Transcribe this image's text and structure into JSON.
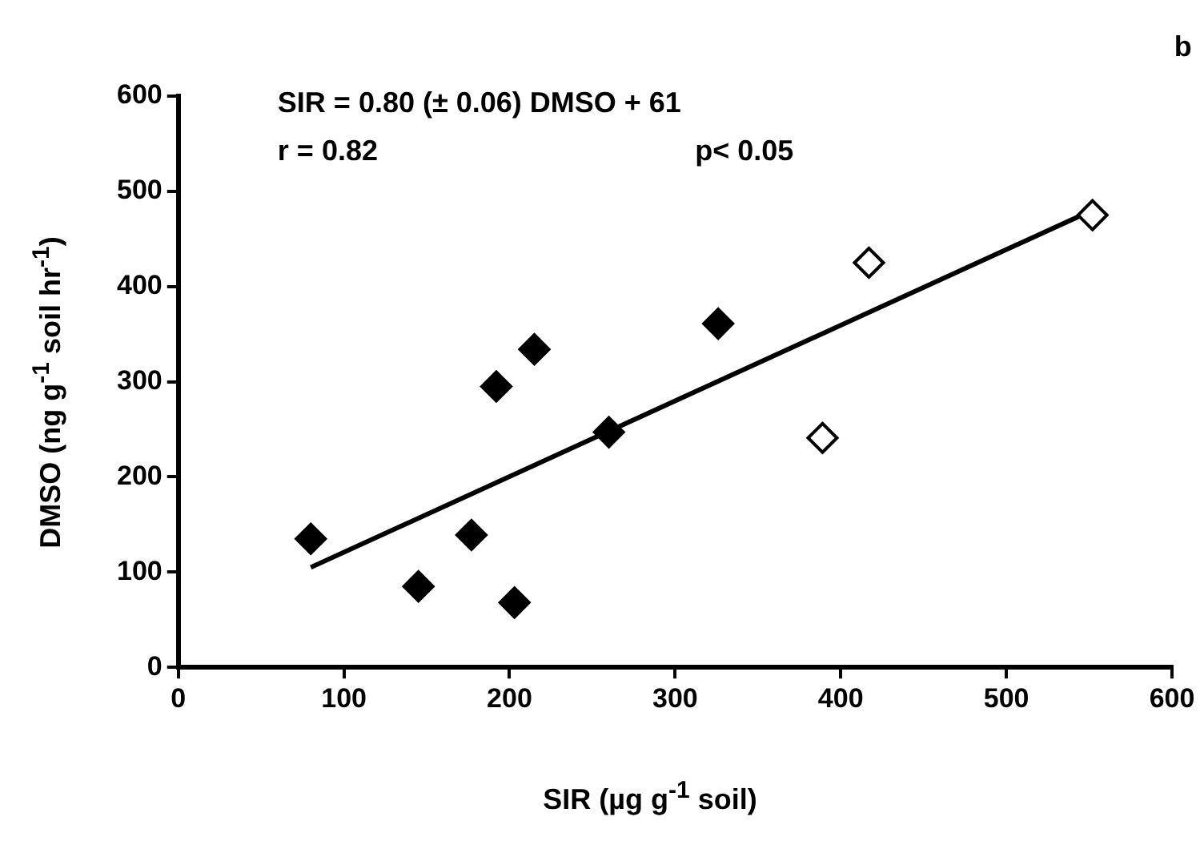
{
  "chart_data": {
    "type": "scatter",
    "xlabel": "SIR (µg g$^{-1}$ soil)",
    "ylabel": "DMSO (ng g$^{-1}$ soil hr$^{-1}$)",
    "annotations": [
      "b",
      "SIR = 0.80 (± 0.06) DMSO + 61",
      "r = 0.82",
      "p< 0.05"
    ],
    "xlim": [
      0,
      600
    ],
    "xticks": [
      0,
      100,
      200,
      300,
      400,
      500,
      600
    ],
    "ylim": [
      0,
      600
    ],
    "yticks": [
      0,
      100,
      200,
      300,
      400,
      500,
      600
    ],
    "grid": false,
    "legend": false,
    "marker": "diamond",
    "series": [
      {
        "color": "#000000",
        "x": [
          80,
          145,
          177,
          192,
          215,
          203,
          260,
          326
        ],
        "values": [
          135,
          85,
          139,
          295,
          334,
          68,
          247,
          361
        ]
      },
      {
        "color": "#ffffff",
        "x": [
          389,
          417,
          552
        ],
        "values": [
          241,
          425,
          475
        ]
      },
      {
        "type": "line",
        "marker": "none",
        "color": "#000000",
        "x": [
          80,
          548
        ],
        "values": [
          105,
          477
        ]
      }
    ]
  }
}
